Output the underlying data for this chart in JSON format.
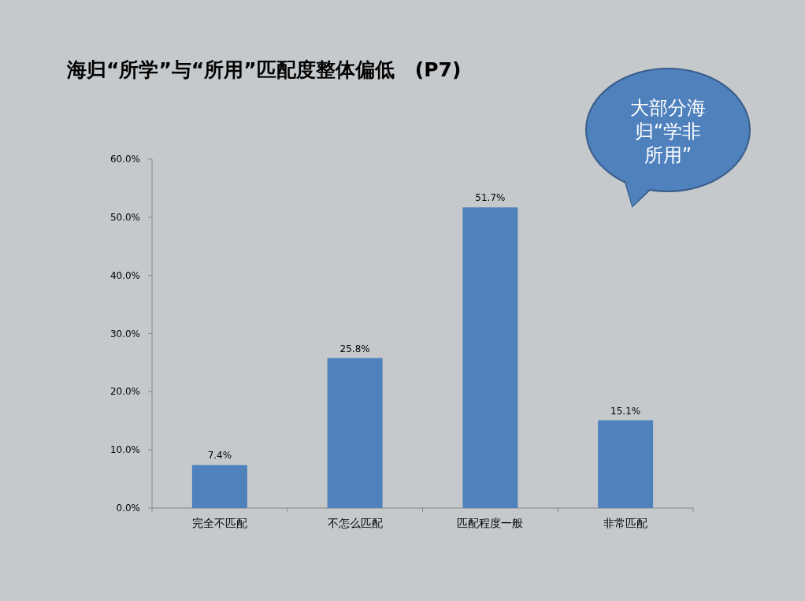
{
  "chart_data": {
    "type": "bar",
    "title": "海归“所学”与“所用”匹配度整体偏低   (P7)",
    "categories": [
      "完全不匹配",
      "不怎么匹配",
      "匹配程度一般",
      "非常匹配"
    ],
    "values": [
      7.4,
      25.8,
      51.7,
      15.1
    ],
    "color": "#4f81bd",
    "value_labels": [
      "7.4%",
      "25.8%",
      "51.7%",
      "15.1%"
    ],
    "ylim": [
      0,
      60
    ],
    "yticks": [
      {
        "value": 0,
        "label": "0.0%"
      },
      {
        "value": 10,
        "label": "10.0%"
      },
      {
        "value": 20,
        "label": "20.0%"
      },
      {
        "value": 30,
        "label": "30.0%"
      },
      {
        "value": 40,
        "label": "40.0%"
      },
      {
        "value": 50,
        "label": "50.0%"
      },
      {
        "value": 60,
        "label": "60.0%"
      }
    ],
    "grid": false,
    "annotations": [
      "大部分海归“学非所用”"
    ]
  }
}
